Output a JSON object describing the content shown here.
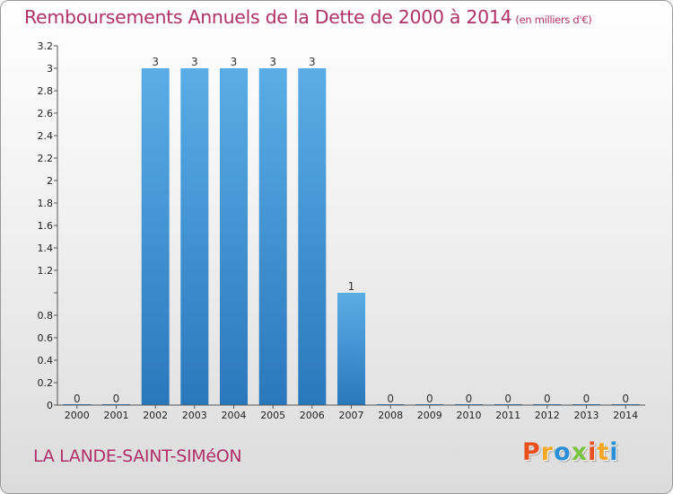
{
  "header": {
    "title": "Remboursements Annuels de la Dette de 2000 à 2014",
    "unit": "(en milliers d'€)"
  },
  "footer": {
    "commune": "LA LANDE-SAINT-SIMéON",
    "logo_letters": [
      "P",
      "r",
      "o",
      "x",
      "i",
      "t",
      "i"
    ],
    "logo_colors": [
      "#e8501e",
      "#f5a623",
      "#2a8fd6",
      "#7cc242",
      "#e8501e",
      "#f5a623",
      "#2a8fd6"
    ]
  },
  "chart_data": {
    "type": "bar",
    "title": "Remboursements Annuels de la Dette de 2000 à 2014",
    "subtitle": "(en milliers d'€)",
    "xlabel": "",
    "ylabel": "",
    "categories": [
      "2000",
      "2001",
      "2002",
      "2003",
      "2004",
      "2005",
      "2006",
      "2007",
      "2008",
      "2009",
      "2010",
      "2011",
      "2012",
      "2013",
      "2014"
    ],
    "values": [
      0,
      0,
      3,
      3,
      3,
      3,
      3,
      1,
      0,
      0,
      0,
      0,
      0,
      0,
      0
    ],
    "data_labels": [
      "0",
      "0",
      "3",
      "3",
      "3",
      "3",
      "3",
      "1",
      "0",
      "0",
      "0",
      "0",
      "0",
      "0",
      "0"
    ],
    "ylim": [
      0,
      3.2
    ],
    "yticks": [
      0,
      0.2,
      0.4,
      0.6,
      0.8,
      1,
      1.2,
      1.4,
      1.6,
      1.8,
      2,
      2.2,
      2.4,
      2.6,
      2.8,
      3,
      3.2
    ],
    "ytick_labels": [
      "0",
      "0.2",
      "0.4",
      "0.6",
      "0.8",
      "",
      "1.2",
      "1.4",
      "1.6",
      "1.8",
      "2",
      "2.2",
      "2.4",
      "2.6",
      "2.8",
      "3",
      "3.2"
    ],
    "grid": false,
    "legend": "none",
    "bar_color_top": "#5aade6",
    "bar_color_bottom": "#2a78bc"
  }
}
